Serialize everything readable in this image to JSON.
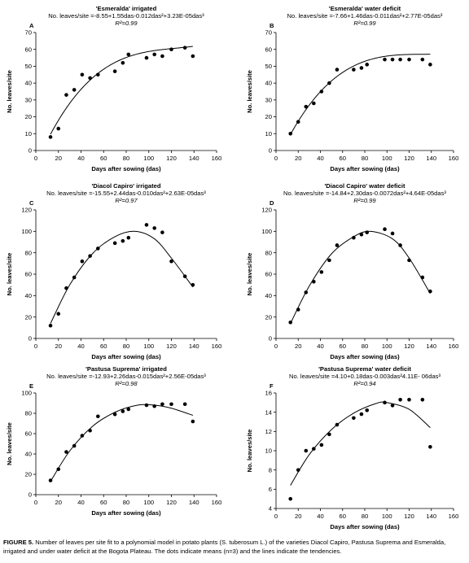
{
  "caption": {
    "label": "FIGURE 5.",
    "text": "Number of leaves per site fit to a polynomial model in potato plants (S. tuberosum L.) of the varieties Diacol Capiro, Pastusa Suprema and Esmeralda, irrigated and under water deficit at the Bogota Plateau. The dots indicate means (n=3) and the lines indicate the tendencies."
  },
  "chart_data": [
    {
      "type": "scatter",
      "panel": "A",
      "title": "'Esmeralda' irrigated",
      "equation": "No. leaves/site =-8.55+1.55das-0.012das²+3.23E-05das³",
      "r2": "R²=0.99",
      "xlabel": "Days after sowing (das)",
      "ylabel": "No. leaves/site",
      "xlim": [
        0,
        160
      ],
      "ylim": [
        0,
        70
      ],
      "xticks": [
        "0",
        "20",
        "40",
        "60",
        "80",
        "100",
        "120",
        "140",
        "160"
      ],
      "yticks": [
        "0",
        "10",
        "20",
        "30",
        "40",
        "50",
        "60",
        "70"
      ],
      "x": [
        13,
        20,
        27,
        34,
        41,
        48,
        55,
        70,
        77,
        82,
        98,
        105,
        112,
        120,
        132,
        139
      ],
      "y": [
        8,
        13,
        33,
        36,
        45,
        43,
        45,
        47,
        52,
        57,
        55,
        57,
        56,
        60,
        61,
        56
      ],
      "fit": [
        -8.55,
        1.55,
        -0.012,
        3.23e-05
      ],
      "fit_range": [
        13,
        139
      ]
    },
    {
      "type": "scatter",
      "panel": "B",
      "title": "'Esmeralda' water deficit",
      "equation": "No. leaves/site =-7.66+1.46das-0.011das²+2.77E-05das³",
      "r2": "R²=0.99",
      "xlabel": "Days after sowing (das)",
      "ylabel": "No. leaves/site",
      "xlim": [
        0,
        160
      ],
      "ylim": [
        0,
        70
      ],
      "xticks": [
        "0",
        "20",
        "40",
        "60",
        "80",
        "100",
        "120",
        "140",
        "160"
      ],
      "yticks": [
        "0",
        "10",
        "20",
        "30",
        "40",
        "50",
        "60",
        "70"
      ],
      "x": [
        13,
        20,
        27,
        34,
        41,
        48,
        55,
        70,
        77,
        82,
        98,
        105,
        112,
        120,
        132,
        139
      ],
      "y": [
        10,
        17,
        26,
        28,
        35,
        40,
        48,
        48,
        49,
        51,
        54,
        54,
        54,
        54,
        54,
        51
      ],
      "fit": [
        -7.66,
        1.46,
        -0.011,
        2.77e-05
      ],
      "fit_range": [
        13,
        139
      ]
    },
    {
      "type": "scatter",
      "panel": "C",
      "title": "'Diacol Capiro' irrigated",
      "equation": "No. leaves/site =-15.55+2.44das-0.010das²+2.63E-05das³",
      "r2": "R²=0.97",
      "xlabel": "Days after sowing (das)",
      "ylabel": "No. leaves/site",
      "xlim": [
        0,
        160
      ],
      "ylim": [
        0,
        120
      ],
      "xticks": [
        "0",
        "20",
        "40",
        "60",
        "80",
        "100",
        "120",
        "140",
        "160"
      ],
      "yticks": [
        "0",
        "20",
        "40",
        "60",
        "80",
        "100",
        "120"
      ],
      "x": [
        13,
        20,
        27,
        34,
        41,
        48,
        55,
        70,
        77,
        82,
        98,
        105,
        112,
        120,
        132,
        139
      ],
      "y": [
        12,
        23,
        47,
        57,
        72,
        77,
        84,
        89,
        91,
        94,
        106,
        103,
        99,
        72,
        58,
        50
      ],
      "fit_points": [
        [
          13,
          14
        ],
        [
          30,
          50
        ],
        [
          50,
          79
        ],
        [
          70,
          95
        ],
        [
          88,
          100
        ],
        [
          105,
          93
        ],
        [
          120,
          75
        ],
        [
          139,
          48
        ]
      ],
      "fit_range": [
        13,
        139
      ]
    },
    {
      "type": "scatter",
      "panel": "D",
      "title": "'Diacol Capiro' water deficit",
      "equation": "No. leaves/site =-14.84+2.30das-0.0072das²+4.64E-05das³",
      "r2": "R²=0.99",
      "xlabel": "Days after sowing (das)",
      "ylabel": "No. leaves/site",
      "xlim": [
        0,
        160
      ],
      "ylim": [
        0,
        120
      ],
      "xticks": [
        "0",
        "20",
        "40",
        "60",
        "80",
        "100",
        "120",
        "140",
        "160"
      ],
      "yticks": [
        "0",
        "20",
        "40",
        "60",
        "80",
        "100",
        "120"
      ],
      "x": [
        13,
        20,
        27,
        34,
        41,
        48,
        55,
        70,
        77,
        82,
        98,
        105,
        112,
        120,
        132,
        139
      ],
      "y": [
        15,
        27,
        43,
        53,
        62,
        73,
        87,
        94,
        97,
        99,
        102,
        98,
        87,
        73,
        57,
        44
      ],
      "fit_points": [
        [
          13,
          14
        ],
        [
          30,
          49
        ],
        [
          50,
          79
        ],
        [
          70,
          95
        ],
        [
          85,
          100
        ],
        [
          105,
          93
        ],
        [
          120,
          75
        ],
        [
          139,
          42
        ]
      ],
      "fit_range": [
        13,
        139
      ]
    },
    {
      "type": "scatter",
      "panel": "E",
      "title": "'Pastusa Suprema' irrigated",
      "equation": "No. leaves/site =-12.93+2.26das-0.015das²+2.56E-05das³",
      "r2": "R²=0.98",
      "xlabel": "Days after sowing (das)",
      "ylabel": "No. leaves/site",
      "xlim": [
        0,
        160
      ],
      "ylim": [
        0,
        100
      ],
      "xticks": [
        "0",
        "20",
        "40",
        "60",
        "80",
        "100",
        "120",
        "140",
        "160"
      ],
      "yticks": [
        "0",
        "20",
        "40",
        "60",
        "80",
        "100"
      ],
      "x": [
        13,
        20,
        27,
        34,
        41,
        48,
        55,
        70,
        77,
        82,
        98,
        105,
        112,
        120,
        132,
        139
      ],
      "y": [
        14,
        25,
        42,
        48,
        58,
        63,
        77,
        79,
        82,
        84,
        88,
        87,
        89,
        89,
        89,
        72
      ],
      "fit_points": [
        [
          13,
          13
        ],
        [
          30,
          43
        ],
        [
          50,
          67
        ],
        [
          70,
          81
        ],
        [
          90,
          88
        ],
        [
          105,
          88
        ],
        [
          120,
          85
        ],
        [
          139,
          78
        ]
      ],
      "fit_range": [
        13,
        139
      ]
    },
    {
      "type": "scatter",
      "panel": "F",
      "title": "'Pastusa Suprema' water deficit",
      "equation": "No. leaves/site =4.10+0.18das-0.003das²4.11E- 06das³",
      "r2": "R²=0.94",
      "xlabel": "Days after sowing (das)",
      "ylabel": "No. leaves/site",
      "xlim": [
        0,
        160
      ],
      "ylim": [
        4,
        16
      ],
      "xticks": [
        "0",
        "20",
        "40",
        "60",
        "80",
        "100",
        "120",
        "140",
        "160"
      ],
      "yticks": [
        "4",
        "6",
        "8",
        "10",
        "12",
        "14",
        "16"
      ],
      "x": [
        13,
        20,
        27,
        34,
        41,
        48,
        55,
        70,
        77,
        82,
        98,
        105,
        112,
        120,
        132,
        139
      ],
      "y": [
        5.0,
        8.0,
        10.0,
        10.2,
        10.6,
        11.7,
        12.7,
        13.4,
        13.8,
        14.2,
        15.0,
        14.7,
        15.3,
        15.3,
        15.3,
        10.4
      ],
      "fit_points": [
        [
          13,
          6.4
        ],
        [
          30,
          9.6
        ],
        [
          50,
          12.2
        ],
        [
          70,
          13.9
        ],
        [
          90,
          14.9
        ],
        [
          100,
          15.0
        ],
        [
          120,
          14.3
        ],
        [
          139,
          12.4
        ]
      ],
      "fit_range": [
        13,
        139
      ]
    }
  ]
}
